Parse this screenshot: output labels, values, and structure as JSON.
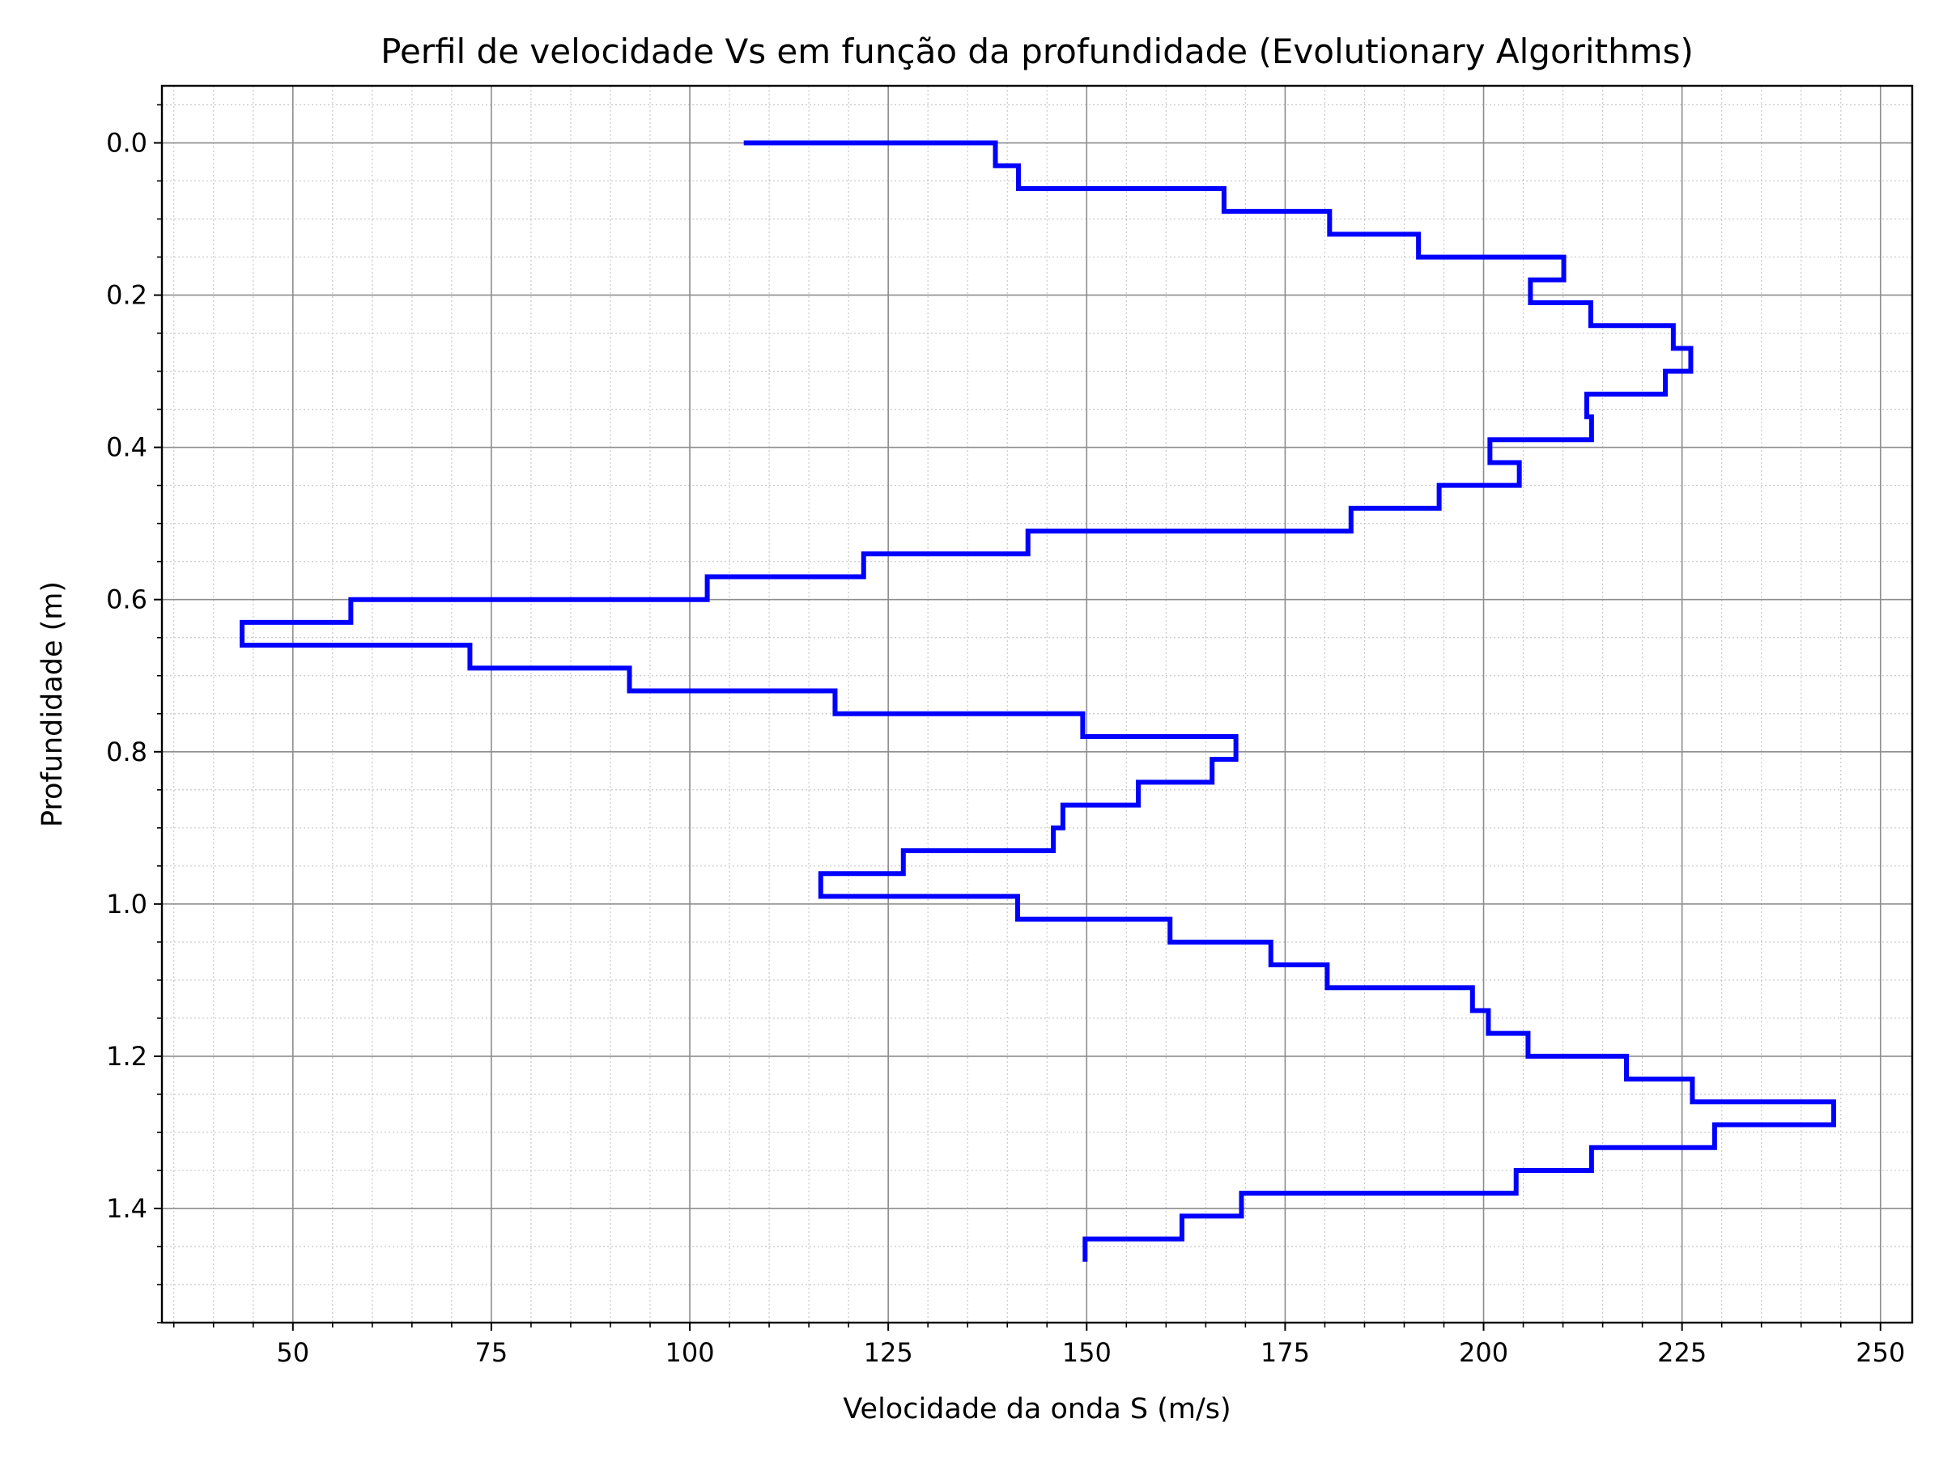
{
  "chart_data": {
    "type": "line",
    "title": "Perfil de velocidade Vs em função da profundidade (Evolutionary Algorithms)",
    "xlabel": "Velocidade da onda S (m/s)",
    "ylabel": "Profundidade (m)",
    "xlim": [
      33.5,
      254
    ],
    "ylim": [
      1.55,
      -0.075
    ],
    "y_inverted": true,
    "xticks": [
      50,
      75,
      100,
      125,
      150,
      175,
      200,
      225,
      250
    ],
    "xtick_labels": [
      "50",
      "75",
      "100",
      "125",
      "150",
      "175",
      "200",
      "225",
      "250"
    ],
    "yticks": [
      0.0,
      0.2,
      0.4,
      0.6,
      0.8,
      1.0,
      1.2,
      1.4
    ],
    "ytick_labels": [
      "0.0",
      "0.2",
      "0.4",
      "0.6",
      "0.8",
      "1.0",
      "1.2",
      "1.4"
    ],
    "grid": {
      "major": true,
      "minor": true
    },
    "line_color": "#0000ff",
    "step_profile": {
      "layer_thickness": 0.03,
      "velocities": [
        138.5,
        141.4,
        167.3,
        180.6,
        191.8,
        210.1,
        205.9,
        213.5,
        223.9,
        226.1,
        222.9,
        213.0,
        213.6,
        200.8,
        204.5,
        194.4,
        183.3,
        142.6,
        121.9,
        102.2,
        57.3,
        43.6,
        72.3,
        92.4,
        118.3,
        149.5,
        168.8,
        165.8,
        156.5,
        147.0,
        145.8,
        126.9,
        116.5,
        141.3,
        160.5,
        173.2,
        180.3,
        198.6,
        200.6,
        205.6,
        218.0,
        226.3,
        244.1,
        229.1,
        213.6,
        204.1,
        169.5,
        162.0,
        149.8
      ],
      "surface_start": {
        "x": 106.8,
        "y": 0.0
      },
      "end_depth": 1.47
    }
  }
}
